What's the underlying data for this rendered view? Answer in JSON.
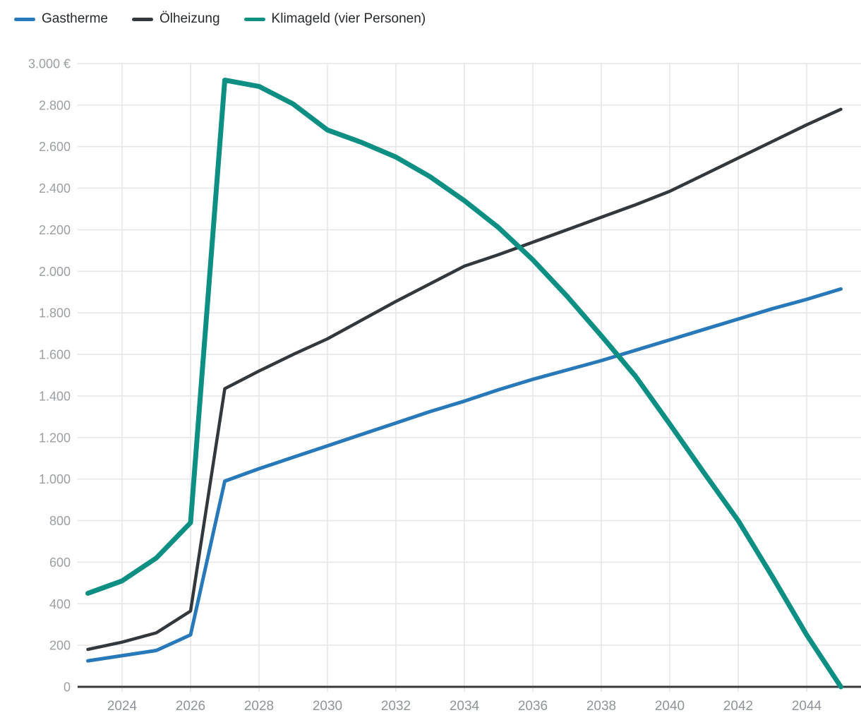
{
  "legend": {
    "items": [
      {
        "key": "gastherme",
        "label": "Gastherme",
        "color": "#2879b9"
      },
      {
        "key": "oelheizung",
        "label": "Ölheizung",
        "color": "#33383c"
      },
      {
        "key": "klimageld",
        "label": "Klimageld (vier Personen)",
        "color": "#0d9083"
      }
    ]
  },
  "chart_data": {
    "type": "line",
    "title": "",
    "xlabel": "",
    "ylabel": "€",
    "x": [
      2023,
      2024,
      2025,
      2026,
      2027,
      2028,
      2029,
      2030,
      2031,
      2032,
      2033,
      2034,
      2035,
      2036,
      2037,
      2038,
      2039,
      2040,
      2041,
      2042,
      2043,
      2044,
      2045
    ],
    "series": [
      {
        "key": "gastherme",
        "name": "Gastherme",
        "color": "#2879b9",
        "line_width": 5,
        "values": [
          125,
          150,
          175,
          250,
          990,
          1050,
          1105,
          1160,
          1215,
          1270,
          1325,
          1375,
          1430,
          1480,
          1525,
          1570,
          1620,
          1670,
          1720,
          1770,
          1820,
          1865,
          1915
        ]
      },
      {
        "key": "oelheizung",
        "name": "Ölheizung",
        "color": "#33383c",
        "line_width": 4.5,
        "values": [
          180,
          215,
          260,
          365,
          1435,
          1520,
          1600,
          1675,
          1765,
          1855,
          1940,
          2025,
          2080,
          2140,
          2200,
          2260,
          2320,
          2385,
          2465,
          2545,
          2625,
          2705,
          2780
        ]
      },
      {
        "key": "klimageld",
        "name": "Klimageld (vier Personen)",
        "color": "#0d9083",
        "line_width": 7,
        "values": [
          450,
          510,
          620,
          790,
          2920,
          2890,
          2805,
          2680,
          2620,
          2550,
          2455,
          2340,
          2210,
          2055,
          1880,
          1690,
          1495,
          1265,
          1030,
          800,
          530,
          250,
          0
        ]
      }
    ],
    "ylim": [
      0,
      3000
    ],
    "y_tick_step": 200,
    "yticks": [
      {
        "value": 0,
        "label": "0"
      },
      {
        "value": 200,
        "label": "200"
      },
      {
        "value": 400,
        "label": "400"
      },
      {
        "value": 600,
        "label": "600"
      },
      {
        "value": 800,
        "label": "800"
      },
      {
        "value": 1000,
        "label": "1.000"
      },
      {
        "value": 1200,
        "label": "1.200"
      },
      {
        "value": 1400,
        "label": "1.400"
      },
      {
        "value": 1600,
        "label": "1.600"
      },
      {
        "value": 1800,
        "label": "1.800"
      },
      {
        "value": 2000,
        "label": "2.000"
      },
      {
        "value": 2200,
        "label": "2.200"
      },
      {
        "value": 2400,
        "label": "2.400"
      },
      {
        "value": 2600,
        "label": "2.600"
      },
      {
        "value": 2800,
        "label": "2.800"
      },
      {
        "value": 3000,
        "label": "3.000 €"
      }
    ],
    "xticks": [
      {
        "value": 2024,
        "label": "2024"
      },
      {
        "value": 2026,
        "label": "2026"
      },
      {
        "value": 2028,
        "label": "2028"
      },
      {
        "value": 2030,
        "label": "2030"
      },
      {
        "value": 2032,
        "label": "2032"
      },
      {
        "value": 2034,
        "label": "2034"
      },
      {
        "value": 2036,
        "label": "2036"
      },
      {
        "value": 2038,
        "label": "2038"
      },
      {
        "value": 2040,
        "label": "2040"
      },
      {
        "value": 2042,
        "label": "2042"
      },
      {
        "value": 2044,
        "label": "2044"
      }
    ],
    "grid": true,
    "legend_position": "top-left",
    "colors": {
      "grid_line": "#e6e6e6",
      "axis_line": "#37393b",
      "axis_label": "#9b9fa3",
      "background": "#ffffff"
    }
  }
}
